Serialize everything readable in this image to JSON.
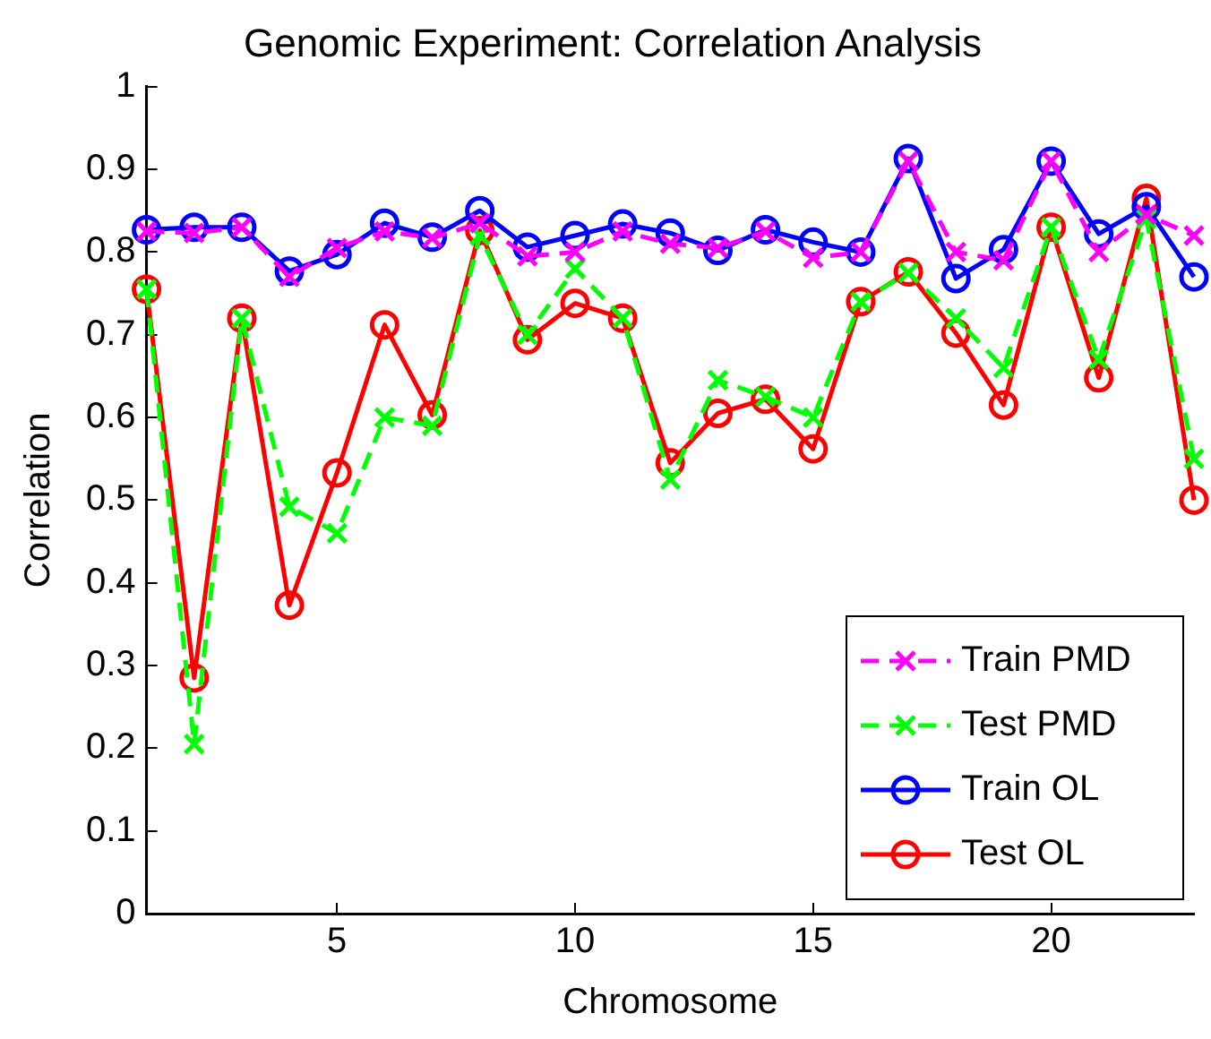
{
  "chart_data": {
    "type": "line",
    "title": "Genomic Experiment: Correlation Analysis",
    "xlabel": "Chromosome",
    "ylabel": "Correlation",
    "x": [
      1,
      2,
      3,
      4,
      5,
      6,
      7,
      8,
      9,
      10,
      11,
      12,
      13,
      14,
      15,
      16,
      17,
      18,
      19,
      20,
      21,
      22,
      23
    ],
    "xlim": [
      1,
      23
    ],
    "xticks": [
      5,
      10,
      15,
      20
    ],
    "ylim": [
      0,
      1
    ],
    "yticks": [
      0,
      0.1,
      0.2,
      0.3,
      0.4,
      0.5,
      0.6,
      0.7,
      0.8,
      0.9,
      1
    ],
    "grid": false,
    "legend": "bottom right",
    "series": [
      {
        "name": "Train PMD",
        "color": "#ff00ff",
        "line_style": "dashed",
        "marker": "cross",
        "values": [
          0.825,
          0.823,
          0.83,
          0.77,
          0.805,
          0.825,
          0.817,
          0.835,
          0.795,
          0.8,
          0.825,
          0.81,
          0.805,
          0.825,
          0.793,
          0.8,
          0.91,
          0.8,
          0.79,
          0.91,
          0.8,
          0.845,
          0.82
        ]
      },
      {
        "name": "Test PMD",
        "color": "#00ff00",
        "line_style": "dashed",
        "marker": "cross",
        "values": [
          0.755,
          0.205,
          0.72,
          0.492,
          0.46,
          0.6,
          0.59,
          0.82,
          0.7,
          0.78,
          0.72,
          0.525,
          0.645,
          0.625,
          0.6,
          0.74,
          0.775,
          0.72,
          0.66,
          0.83,
          0.67,
          0.84,
          0.55
        ]
      },
      {
        "name": "Train OL",
        "color": "#0000ff",
        "line_style": "solid",
        "marker": "circle",
        "values": [
          0.827,
          0.83,
          0.83,
          0.777,
          0.797,
          0.835,
          0.818,
          0.85,
          0.806,
          0.82,
          0.834,
          0.823,
          0.802,
          0.827,
          0.812,
          0.8,
          0.913,
          0.768,
          0.803,
          0.91,
          0.822,
          0.855,
          0.77
        ]
      },
      {
        "name": "Test OL",
        "color": "#ff0000",
        "line_style": "solid",
        "marker": "circle",
        "values": [
          0.755,
          0.285,
          0.72,
          0.373,
          0.533,
          0.712,
          0.603,
          0.826,
          0.694,
          0.738,
          0.72,
          0.545,
          0.605,
          0.622,
          0.562,
          0.74,
          0.776,
          0.702,
          0.615,
          0.83,
          0.648,
          0.865,
          0.5
        ]
      }
    ]
  }
}
